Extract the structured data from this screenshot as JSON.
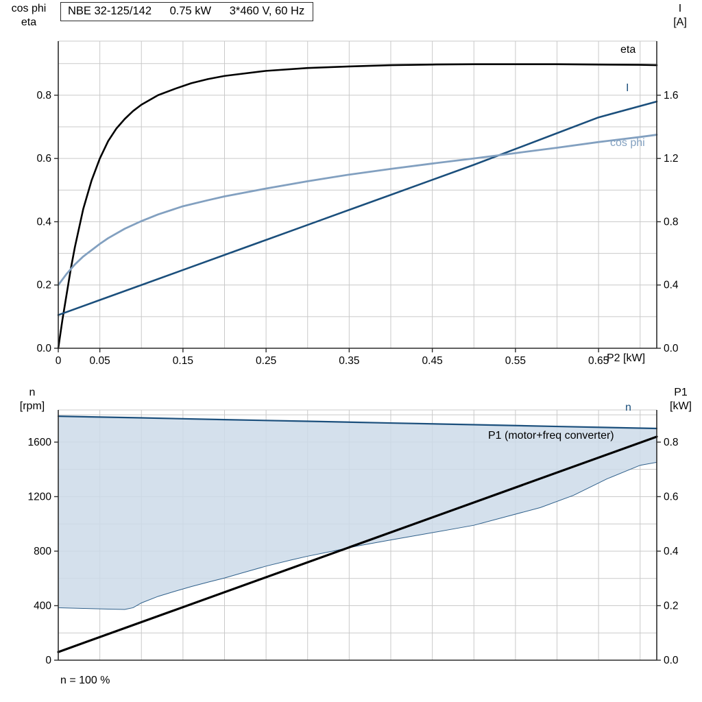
{
  "header": {
    "model": "NBE 32-125/142",
    "power": "0.75 kW",
    "supply": "3*460 V, 60 Hz"
  },
  "labels": {
    "top_left_axis_line1": "cos phi",
    "top_left_axis_line2": "eta",
    "top_right_axis_line1": "I",
    "top_right_axis_line2": "[A]",
    "top_x_axis": "P2 [kW]",
    "bottom_left_axis_line1": "n",
    "bottom_left_axis_line2": "[rpm]",
    "bottom_right_axis_line1": "P1",
    "bottom_right_axis_line2": "[kW]",
    "bottom_note": "n = 100 %",
    "curve_eta": "eta",
    "curve_I": "I",
    "curve_cosphi": "cos phi",
    "curve_n": "n",
    "curve_P1": "P1 (motor+freq converter)"
  },
  "colors": {
    "dark_blue": "#1b4f7c",
    "light_blue": "#82a0c0",
    "black": "#000000",
    "area_fill": "#ccdbe9",
    "grid": "#c9c9c9",
    "axis": "#2b2b2b"
  },
  "chart_data": [
    {
      "type": "line",
      "title": "NBE 32-125/142  0.75 kW  3*460 V, 60 Hz",
      "xlabel": "P2 [kW]",
      "xlim": [
        0,
        0.72
      ],
      "grid": {
        "x_step": 0.05,
        "left_y_step": 0.1
      },
      "x_ticks": [
        {
          "v": 0,
          "label": "0"
        },
        {
          "v": 0.05,
          "label": "0.05"
        },
        {
          "v": 0.15,
          "label": "0.15"
        },
        {
          "v": 0.25,
          "label": "0.25"
        },
        {
          "v": 0.35,
          "label": "0.35"
        },
        {
          "v": 0.45,
          "label": "0.45"
        },
        {
          "v": 0.55,
          "label": "0.55"
        },
        {
          "v": 0.65,
          "label": "0.65"
        }
      ],
      "left_axis": {
        "label": "cos phi / eta",
        "lim": [
          0,
          0.971
        ],
        "ticks": [
          {
            "v": 0.0,
            "label": "0.0"
          },
          {
            "v": 0.2,
            "label": "0.2"
          },
          {
            "v": 0.4,
            "label": "0.4"
          },
          {
            "v": 0.6,
            "label": "0.6"
          },
          {
            "v": 0.8,
            "label": "0.8"
          }
        ]
      },
      "right_axis": {
        "label": "I [A]",
        "lim": [
          0,
          1.942
        ],
        "ticks": [
          {
            "v": 0.0,
            "label": "0.0"
          },
          {
            "v": 0.4,
            "label": "0.4"
          },
          {
            "v": 0.8,
            "label": "0.8"
          },
          {
            "v": 1.2,
            "label": "1.2"
          },
          {
            "v": 1.6,
            "label": "1.6"
          }
        ]
      },
      "series": [
        {
          "name": "eta",
          "axis": "left",
          "color": "#000000",
          "width": 2.6,
          "points": [
            [
              0,
              0
            ],
            [
              0.005,
              0.09
            ],
            [
              0.01,
              0.17
            ],
            [
              0.015,
              0.25
            ],
            [
              0.02,
              0.32
            ],
            [
              0.03,
              0.44
            ],
            [
              0.04,
              0.53
            ],
            [
              0.05,
              0.6
            ],
            [
              0.06,
              0.655
            ],
            [
              0.07,
              0.695
            ],
            [
              0.08,
              0.725
            ],
            [
              0.09,
              0.75
            ],
            [
              0.1,
              0.77
            ],
            [
              0.12,
              0.8
            ],
            [
              0.14,
              0.82
            ],
            [
              0.16,
              0.838
            ],
            [
              0.18,
              0.851
            ],
            [
              0.2,
              0.861
            ],
            [
              0.25,
              0.877
            ],
            [
              0.3,
              0.886
            ],
            [
              0.35,
              0.891
            ],
            [
              0.4,
              0.895
            ],
            [
              0.45,
              0.897
            ],
            [
              0.5,
              0.898
            ],
            [
              0.55,
              0.898
            ],
            [
              0.6,
              0.898
            ],
            [
              0.65,
              0.897
            ],
            [
              0.7,
              0.896
            ],
            [
              0.72,
              0.895
            ]
          ]
        },
        {
          "name": "I",
          "axis": "right",
          "color": "#1b4f7c",
          "width": 2.6,
          "points": [
            [
              0,
              0.21
            ],
            [
              0.05,
              0.305
            ],
            [
              0.1,
              0.4
            ],
            [
              0.15,
              0.495
            ],
            [
              0.2,
              0.59
            ],
            [
              0.25,
              0.685
            ],
            [
              0.3,
              0.78
            ],
            [
              0.35,
              0.875
            ],
            [
              0.4,
              0.97
            ],
            [
              0.45,
              1.065
            ],
            [
              0.5,
              1.16
            ],
            [
              0.55,
              1.26
            ],
            [
              0.6,
              1.36
            ],
            [
              0.65,
              1.46
            ],
            [
              0.72,
              1.56
            ]
          ]
        },
        {
          "name": "cos phi",
          "axis": "left",
          "color": "#82a0c0",
          "width": 2.8,
          "points": [
            [
              0,
              0.2
            ],
            [
              0.01,
              0.235
            ],
            [
              0.02,
              0.265
            ],
            [
              0.03,
              0.29
            ],
            [
              0.04,
              0.31
            ],
            [
              0.05,
              0.33
            ],
            [
              0.06,
              0.348
            ],
            [
              0.08,
              0.378
            ],
            [
              0.1,
              0.402
            ],
            [
              0.12,
              0.423
            ],
            [
              0.15,
              0.449
            ],
            [
              0.18,
              0.468
            ],
            [
              0.2,
              0.48
            ],
            [
              0.25,
              0.505
            ],
            [
              0.3,
              0.528
            ],
            [
              0.35,
              0.549
            ],
            [
              0.4,
              0.567
            ],
            [
              0.45,
              0.584
            ],
            [
              0.5,
              0.6
            ],
            [
              0.55,
              0.617
            ],
            [
              0.6,
              0.634
            ],
            [
              0.65,
              0.652
            ],
            [
              0.7,
              0.668
            ],
            [
              0.72,
              0.675
            ]
          ]
        }
      ]
    },
    {
      "type": "line",
      "title": "Speed and input power vs load, n = 100 %",
      "xlabel": "",
      "xlim": [
        0,
        0.72
      ],
      "grid": {
        "x_step": 0.05,
        "left_y_step": 200
      },
      "x_ticks": [],
      "left_axis": {
        "label": "n [rpm]",
        "lim": [
          0,
          1836
        ],
        "ticks": [
          {
            "v": 0,
            "label": "0"
          },
          {
            "v": 400,
            "label": "400"
          },
          {
            "v": 800,
            "label": "800"
          },
          {
            "v": 1200,
            "label": "1200"
          },
          {
            "v": 1600,
            "label": "1600"
          }
        ]
      },
      "right_axis": {
        "label": "P1 [kW]",
        "lim": [
          0,
          0.918
        ],
        "ticks": [
          {
            "v": 0.0,
            "label": "0.0"
          },
          {
            "v": 0.2,
            "label": "0.2"
          },
          {
            "v": 0.4,
            "label": "0.4"
          },
          {
            "v": 0.6,
            "label": "0.6"
          },
          {
            "v": 0.8,
            "label": "0.8"
          }
        ]
      },
      "area": {
        "name": "speed-operating-range",
        "axis": "left",
        "fill": "#ccdbe9",
        "stroke": "#2e5f8a",
        "lower": [
          [
            0,
            385
          ],
          [
            0.03,
            380
          ],
          [
            0.06,
            375
          ],
          [
            0.08,
            372
          ],
          [
            0.09,
            385
          ],
          [
            0.1,
            420
          ],
          [
            0.12,
            468
          ],
          [
            0.14,
            505
          ],
          [
            0.16,
            540
          ],
          [
            0.18,
            572
          ],
          [
            0.2,
            603
          ],
          [
            0.22,
            638
          ],
          [
            0.25,
            690
          ],
          [
            0.28,
            735
          ],
          [
            0.3,
            763
          ],
          [
            0.33,
            800
          ],
          [
            0.36,
            838
          ],
          [
            0.4,
            882
          ],
          [
            0.44,
            925
          ],
          [
            0.48,
            968
          ],
          [
            0.5,
            990
          ],
          [
            0.54,
            1055
          ],
          [
            0.58,
            1120
          ],
          [
            0.62,
            1210
          ],
          [
            0.66,
            1330
          ],
          [
            0.7,
            1430
          ],
          [
            0.72,
            1452
          ]
        ],
        "upper": [
          [
            0,
            1790
          ],
          [
            0.1,
            1778
          ],
          [
            0.2,
            1765
          ],
          [
            0.3,
            1753
          ],
          [
            0.4,
            1740
          ],
          [
            0.5,
            1728
          ],
          [
            0.6,
            1715
          ],
          [
            0.72,
            1700
          ]
        ]
      },
      "series": [
        {
          "name": "n",
          "axis": "left",
          "color": "#1b4f7c",
          "width": 2.2,
          "points": [
            [
              0,
              1790
            ],
            [
              0.1,
              1778
            ],
            [
              0.2,
              1765
            ],
            [
              0.3,
              1753
            ],
            [
              0.4,
              1740
            ],
            [
              0.5,
              1728
            ],
            [
              0.6,
              1715
            ],
            [
              0.72,
              1700
            ]
          ]
        },
        {
          "name": "P1 (motor+freq converter)",
          "axis": "right",
          "color": "#000000",
          "width": 3.2,
          "points": [
            [
              0,
              0.03
            ],
            [
              0.72,
              0.82
            ]
          ]
        }
      ]
    }
  ]
}
